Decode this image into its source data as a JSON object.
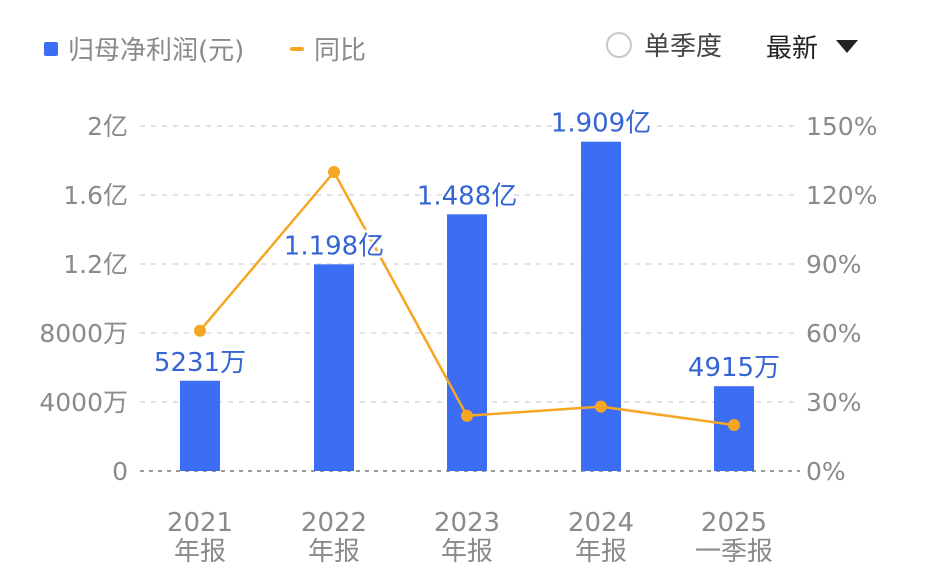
{
  "legend": {
    "net_profit": "归母净利润(元)",
    "yoy": "同比"
  },
  "controls": {
    "quarter_label": "单季度",
    "period_label": "最新"
  },
  "colors": {
    "bar": "#3b6ef5",
    "line": "#f5a623",
    "label": "#3565d4",
    "axis_text": "#8a8a8a",
    "grid": "#e2e2e2"
  },
  "chart_data": {
    "type": "bar",
    "categories": [
      [
        "2021",
        "年报"
      ],
      [
        "2022",
        "年报"
      ],
      [
        "2023",
        "年报"
      ],
      [
        "2024",
        "年报"
      ],
      [
        "2025",
        "一季报"
      ]
    ],
    "series": [
      {
        "name": "归母净利润(元)",
        "type": "bar",
        "axis": "left",
        "values": [
          52310000,
          119800000,
          148800000,
          190900000,
          49150000
        ],
        "labels": [
          "5231万",
          "1.198亿",
          "1.488亿",
          "1.909亿",
          "4915万"
        ]
      },
      {
        "name": "同比",
        "type": "line",
        "axis": "right",
        "values": [
          61,
          130,
          24,
          28,
          20
        ]
      }
    ],
    "left_axis": {
      "ticks": [
        0,
        40000000,
        80000000,
        120000000,
        160000000,
        200000000
      ],
      "tick_labels": [
        "0",
        "4000万",
        "8000万",
        "1.2亿",
        "1.6亿",
        "2亿"
      ],
      "ylim": [
        0,
        200000000
      ]
    },
    "right_axis": {
      "ticks": [
        0,
        30,
        60,
        90,
        120,
        150
      ],
      "tick_labels": [
        "0%",
        "30%",
        "60%",
        "90%",
        "120%",
        "150%"
      ],
      "ylim": [
        0,
        150
      ]
    },
    "grid": true,
    "legend_position": "top-left"
  }
}
